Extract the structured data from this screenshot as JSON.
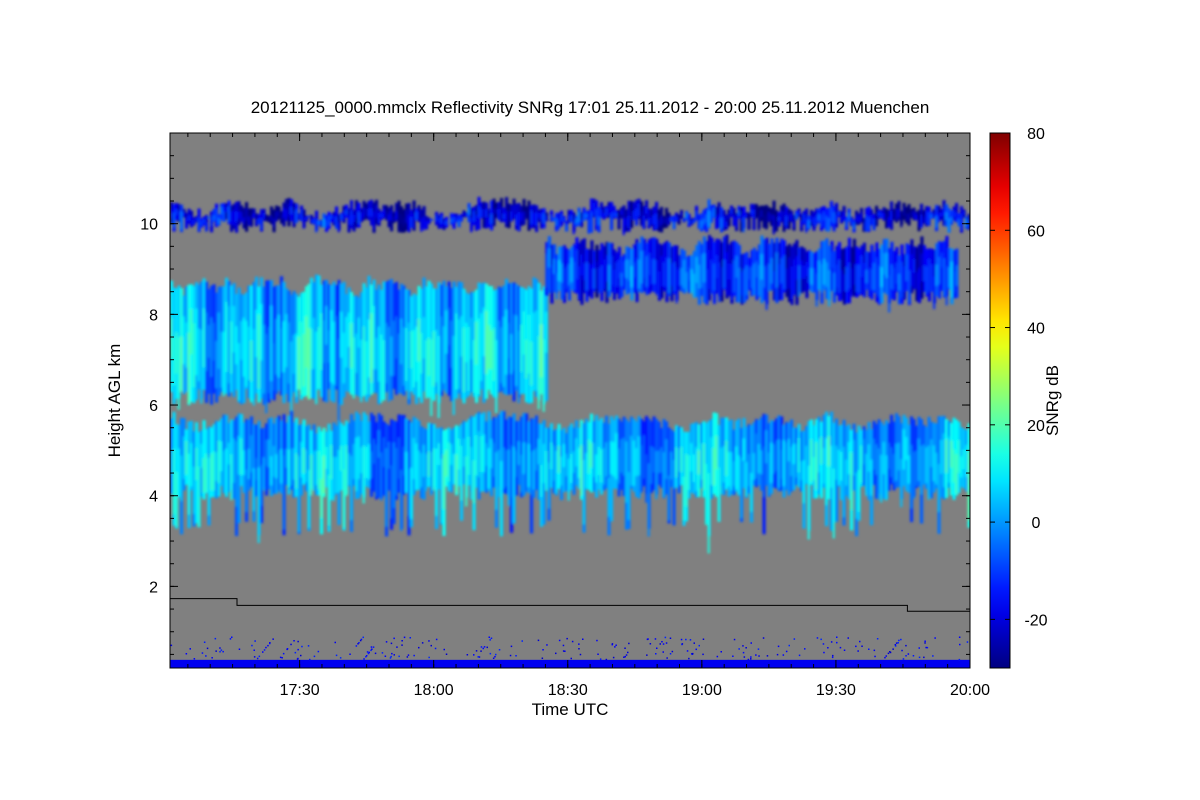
{
  "chart_data": {
    "type": "heatmap",
    "title": "20121125_0000.mmclx Reflectivity SNRg   17:01 25.11.2012 - 20:00 25.11.2012 Muenchen",
    "xlabel": "Time UTC",
    "ylabel": "Height AGL km",
    "xlim": [
      "17:01",
      "20:00"
    ],
    "ylim": [
      0.2,
      12.0
    ],
    "x_ticks": [
      "17:30",
      "18:00",
      "18:30",
      "19:00",
      "19:30",
      "20:00"
    ],
    "y_ticks": [
      2,
      4,
      6,
      8,
      10
    ],
    "background_color": "#808080",
    "colorbar": {
      "label": "SNRg dB",
      "range": [
        -30,
        80
      ],
      "ticks": [
        -20,
        0,
        20,
        40,
        60,
        80
      ],
      "colormap": "jet"
    },
    "cloud_layers": [
      {
        "name": "cirrus_top",
        "t_start": "17:01",
        "t_end": "20:00",
        "base_km": 9.8,
        "top_km": 10.6,
        "snr_db": -22
      },
      {
        "name": "upper_layer_west",
        "t_start": "17:01",
        "t_end": "18:25",
        "base_km": 6.0,
        "top_km": 8.9,
        "snr_db": 2
      },
      {
        "name": "upper_layer_east",
        "t_start": "18:25",
        "t_end": "19:57",
        "base_km": 8.2,
        "top_km": 9.8,
        "snr_db": -15
      },
      {
        "name": "lower_layer",
        "t_start": "17:01",
        "t_end": "20:00",
        "base_km": 3.9,
        "top_km": 5.9,
        "snr_db": 0
      }
    ],
    "boundary_layer_line": [
      {
        "time": "17:01",
        "height_km": 1.73
      },
      {
        "time": "17:16",
        "height_km": 1.73
      },
      {
        "time": "17:16",
        "height_km": 1.58
      },
      {
        "time": "19:46",
        "height_km": 1.58
      },
      {
        "time": "19:46",
        "height_km": 1.45
      },
      {
        "time": "20:00",
        "height_km": 1.45
      }
    ]
  }
}
